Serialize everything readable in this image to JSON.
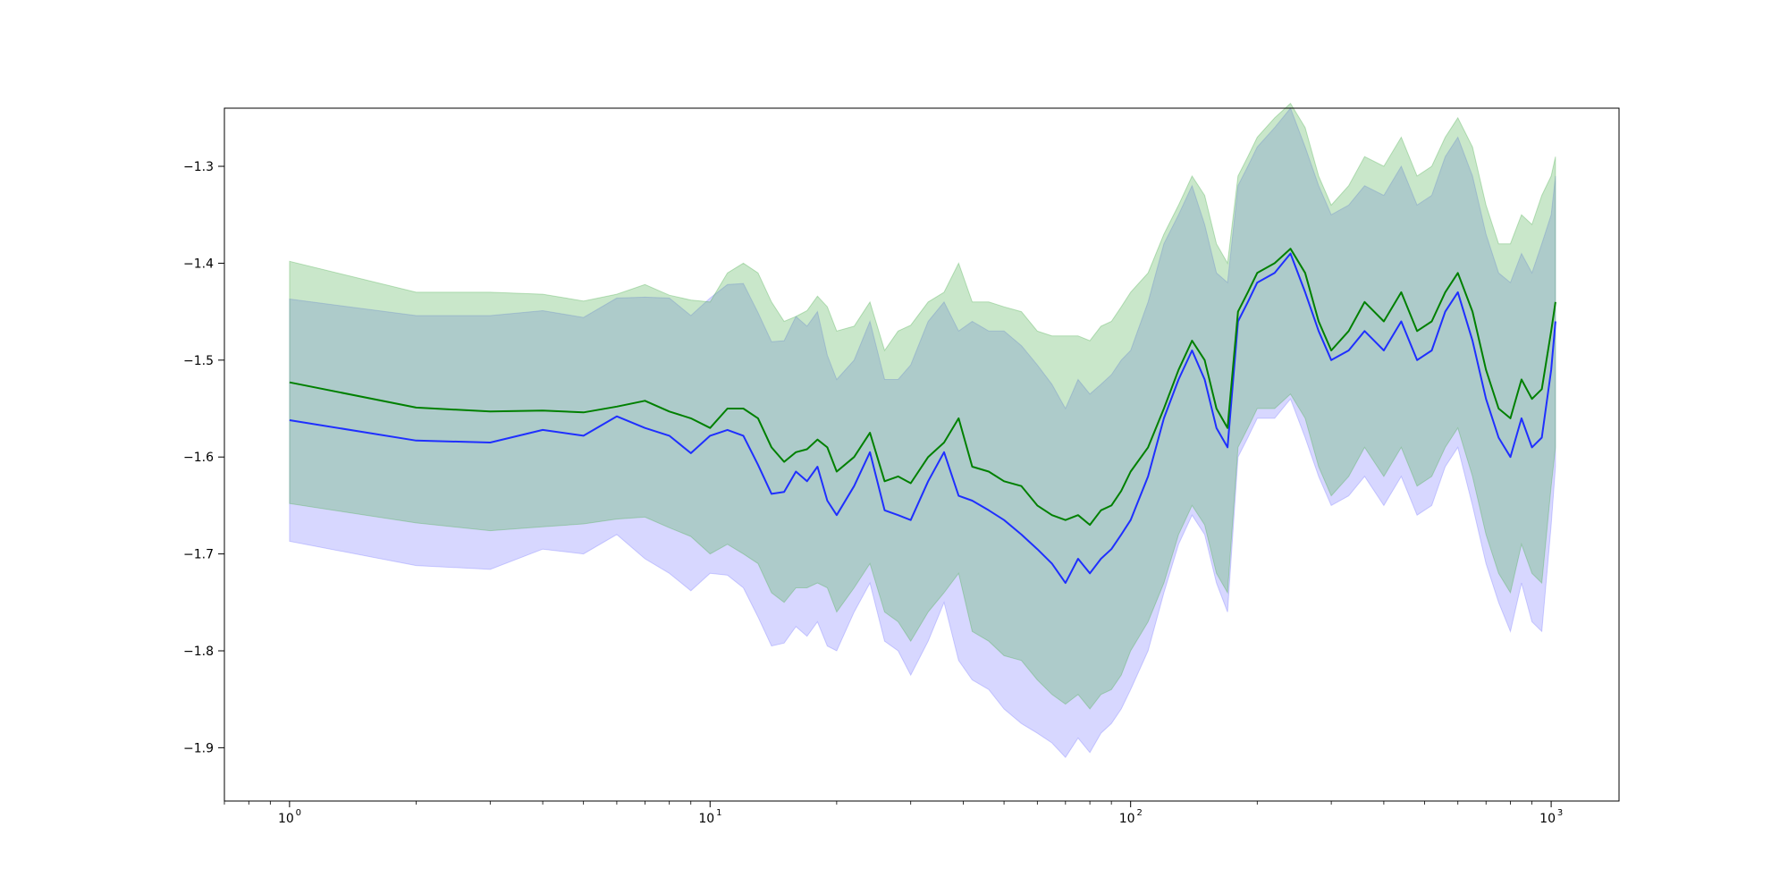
{
  "chart_data": {
    "type": "line",
    "title": "",
    "xlabel": "",
    "ylabel": "",
    "x_scale": "log",
    "xlim": [
      0.7,
      1450
    ],
    "ylim": [
      -1.955,
      -1.24
    ],
    "grid": false,
    "legend": "none",
    "x_major_ticks": [
      1,
      10,
      100,
      1000
    ],
    "x_tick_labels": [
      {
        "base": "10",
        "exp": "0"
      },
      {
        "base": "10",
        "exp": "1"
      },
      {
        "base": "10",
        "exp": "2"
      },
      {
        "base": "10",
        "exp": "3"
      }
    ],
    "y_ticks": [
      -1.3,
      -1.4,
      -1.5,
      -1.6,
      -1.7,
      -1.8,
      -1.9
    ],
    "y_tick_labels": [
      "−1.3",
      "−1.4",
      "−1.5",
      "−1.6",
      "−1.7",
      "−1.8",
      "−1.9"
    ],
    "series": [
      {
        "color": "#1f2fff",
        "band_color": "#7b7bff",
        "x": [
          1,
          2,
          3,
          4,
          5,
          6,
          7,
          8,
          9,
          10,
          11,
          12,
          13,
          14,
          15,
          16,
          17,
          18,
          19,
          20,
          22,
          24,
          26,
          28,
          30,
          33,
          36,
          39,
          42,
          46,
          50,
          55,
          60,
          65,
          70,
          75,
          80,
          85,
          90,
          95,
          100,
          110,
          120,
          130,
          140,
          150,
          160,
          170,
          180,
          190,
          200,
          220,
          240,
          260,
          280,
          300,
          330,
          360,
          400,
          440,
          480,
          520,
          560,
          600,
          650,
          700,
          750,
          800,
          850,
          900,
          950,
          1000,
          1024
        ],
        "values": [
          -1.562,
          -1.583,
          -1.585,
          -1.572,
          -1.578,
          -1.558,
          -1.57,
          -1.578,
          -1.596,
          -1.578,
          -1.572,
          -1.578,
          -1.608,
          -1.638,
          -1.636,
          -1.615,
          -1.625,
          -1.61,
          -1.645,
          -1.66,
          -1.63,
          -1.595,
          -1.655,
          -1.66,
          -1.665,
          -1.625,
          -1.595,
          -1.64,
          -1.645,
          -1.655,
          -1.665,
          -1.68,
          -1.695,
          -1.71,
          -1.73,
          -1.705,
          -1.72,
          -1.705,
          -1.695,
          -1.68,
          -1.665,
          -1.62,
          -1.56,
          -1.52,
          -1.49,
          -1.52,
          -1.57,
          -1.59,
          -1.46,
          -1.44,
          -1.42,
          -1.41,
          -1.39,
          -1.43,
          -1.47,
          -1.5,
          -1.49,
          -1.47,
          -1.49,
          -1.46,
          -1.5,
          -1.49,
          -1.45,
          -1.43,
          -1.48,
          -1.54,
          -1.58,
          -1.6,
          -1.56,
          -1.59,
          -1.58,
          -1.51,
          -1.46
        ],
        "lower": [
          -1.687,
          -1.712,
          -1.716,
          -1.695,
          -1.7,
          -1.68,
          -1.705,
          -1.72,
          -1.738,
          -1.72,
          -1.722,
          -1.735,
          -1.765,
          -1.795,
          -1.792,
          -1.775,
          -1.785,
          -1.77,
          -1.795,
          -1.8,
          -1.76,
          -1.73,
          -1.79,
          -1.8,
          -1.825,
          -1.79,
          -1.75,
          -1.81,
          -1.83,
          -1.84,
          -1.86,
          -1.875,
          -1.885,
          -1.895,
          -1.91,
          -1.89,
          -1.905,
          -1.885,
          -1.875,
          -1.86,
          -1.84,
          -1.8,
          -1.74,
          -1.69,
          -1.66,
          -1.68,
          -1.73,
          -1.76,
          -1.6,
          -1.58,
          -1.56,
          -1.56,
          -1.54,
          -1.58,
          -1.62,
          -1.65,
          -1.64,
          -1.62,
          -1.65,
          -1.62,
          -1.66,
          -1.65,
          -1.61,
          -1.59,
          -1.65,
          -1.71,
          -1.75,
          -1.78,
          -1.73,
          -1.77,
          -1.78,
          -1.67,
          -1.61
        ],
        "upper": [
          -1.437,
          -1.454,
          -1.454,
          -1.449,
          -1.456,
          -1.436,
          -1.435,
          -1.436,
          -1.454,
          -1.436,
          -1.422,
          -1.421,
          -1.451,
          -1.481,
          -1.48,
          -1.455,
          -1.465,
          -1.45,
          -1.495,
          -1.52,
          -1.5,
          -1.46,
          -1.52,
          -1.52,
          -1.505,
          -1.46,
          -1.44,
          -1.47,
          -1.46,
          -1.47,
          -1.47,
          -1.485,
          -1.505,
          -1.525,
          -1.55,
          -1.52,
          -1.535,
          -1.525,
          -1.515,
          -1.5,
          -1.49,
          -1.44,
          -1.38,
          -1.35,
          -1.32,
          -1.36,
          -1.41,
          -1.42,
          -1.32,
          -1.3,
          -1.28,
          -1.26,
          -1.24,
          -1.28,
          -1.32,
          -1.35,
          -1.34,
          -1.32,
          -1.33,
          -1.3,
          -1.34,
          -1.33,
          -1.29,
          -1.27,
          -1.31,
          -1.37,
          -1.41,
          -1.42,
          -1.39,
          -1.41,
          -1.38,
          -1.35,
          -1.31
        ]
      },
      {
        "color": "#008000",
        "band_color": "#4caf50",
        "x": [
          1,
          2,
          3,
          4,
          5,
          6,
          7,
          8,
          9,
          10,
          11,
          12,
          13,
          14,
          15,
          16,
          17,
          18,
          19,
          20,
          22,
          24,
          26,
          28,
          30,
          33,
          36,
          39,
          42,
          46,
          50,
          55,
          60,
          65,
          70,
          75,
          80,
          85,
          90,
          95,
          100,
          110,
          120,
          130,
          140,
          150,
          160,
          170,
          180,
          190,
          200,
          220,
          240,
          260,
          280,
          300,
          330,
          360,
          400,
          440,
          480,
          520,
          560,
          600,
          650,
          700,
          750,
          800,
          850,
          900,
          950,
          1000,
          1024
        ],
        "values": [
          -1.523,
          -1.549,
          -1.553,
          -1.552,
          -1.554,
          -1.548,
          -1.542,
          -1.553,
          -1.56,
          -1.57,
          -1.55,
          -1.55,
          -1.56,
          -1.59,
          -1.605,
          -1.595,
          -1.592,
          -1.582,
          -1.59,
          -1.615,
          -1.6,
          -1.575,
          -1.625,
          -1.62,
          -1.627,
          -1.6,
          -1.585,
          -1.56,
          -1.61,
          -1.615,
          -1.625,
          -1.63,
          -1.65,
          -1.66,
          -1.665,
          -1.66,
          -1.67,
          -1.655,
          -1.65,
          -1.635,
          -1.615,
          -1.59,
          -1.55,
          -1.51,
          -1.48,
          -1.5,
          -1.55,
          -1.57,
          -1.45,
          -1.43,
          -1.41,
          -1.4,
          -1.385,
          -1.41,
          -1.46,
          -1.49,
          -1.47,
          -1.44,
          -1.46,
          -1.43,
          -1.47,
          -1.46,
          -1.43,
          -1.41,
          -1.45,
          -1.51,
          -1.55,
          -1.56,
          -1.52,
          -1.54,
          -1.53,
          -1.47,
          -1.44
        ],
        "lower": [
          -1.648,
          -1.668,
          -1.676,
          -1.672,
          -1.669,
          -1.664,
          -1.662,
          -1.673,
          -1.682,
          -1.7,
          -1.69,
          -1.7,
          -1.71,
          -1.74,
          -1.75,
          -1.735,
          -1.735,
          -1.73,
          -1.735,
          -1.76,
          -1.735,
          -1.71,
          -1.76,
          -1.77,
          -1.79,
          -1.76,
          -1.74,
          -1.72,
          -1.78,
          -1.79,
          -1.805,
          -1.81,
          -1.83,
          -1.845,
          -1.855,
          -1.845,
          -1.86,
          -1.845,
          -1.84,
          -1.825,
          -1.8,
          -1.77,
          -1.73,
          -1.68,
          -1.65,
          -1.67,
          -1.72,
          -1.74,
          -1.59,
          -1.57,
          -1.55,
          -1.55,
          -1.535,
          -1.56,
          -1.61,
          -1.64,
          -1.62,
          -1.59,
          -1.62,
          -1.59,
          -1.63,
          -1.62,
          -1.59,
          -1.57,
          -1.62,
          -1.68,
          -1.72,
          -1.74,
          -1.69,
          -1.72,
          -1.73,
          -1.63,
          -1.59
        ],
        "upper": [
          -1.398,
          -1.43,
          -1.43,
          -1.432,
          -1.439,
          -1.432,
          -1.422,
          -1.433,
          -1.438,
          -1.44,
          -1.41,
          -1.4,
          -1.41,
          -1.44,
          -1.46,
          -1.455,
          -1.449,
          -1.434,
          -1.445,
          -1.47,
          -1.465,
          -1.44,
          -1.49,
          -1.47,
          -1.464,
          -1.44,
          -1.43,
          -1.4,
          -1.44,
          -1.44,
          -1.445,
          -1.45,
          -1.47,
          -1.475,
          -1.475,
          -1.475,
          -1.48,
          -1.465,
          -1.46,
          -1.445,
          -1.43,
          -1.41,
          -1.37,
          -1.34,
          -1.31,
          -1.33,
          -1.38,
          -1.4,
          -1.31,
          -1.29,
          -1.27,
          -1.25,
          -1.235,
          -1.26,
          -1.31,
          -1.34,
          -1.32,
          -1.29,
          -1.3,
          -1.27,
          -1.31,
          -1.3,
          -1.27,
          -1.25,
          -1.28,
          -1.34,
          -1.38,
          -1.38,
          -1.35,
          -1.36,
          -1.33,
          -1.31,
          -1.29
        ]
      }
    ]
  }
}
